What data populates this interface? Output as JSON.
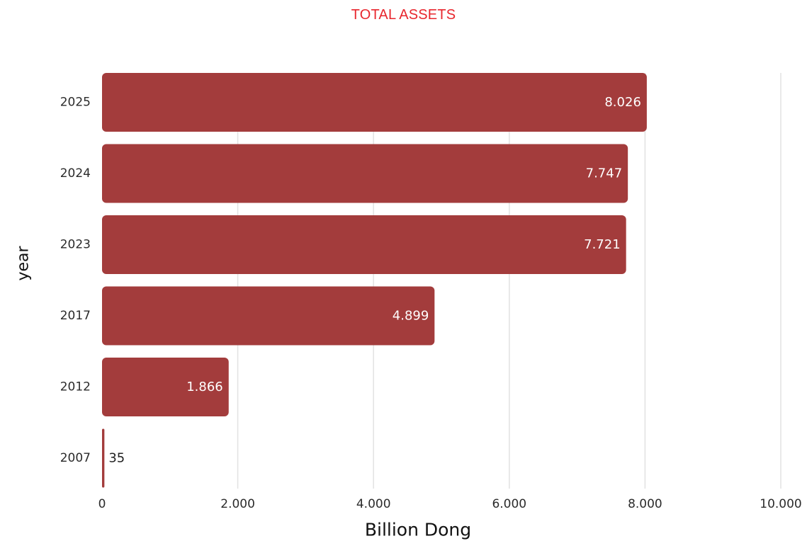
{
  "chart_data": {
    "type": "bar",
    "orientation": "horizontal",
    "title": "TOTAL ASSETS",
    "xlabel": "Billion Dong",
    "ylabel": "year",
    "categories": [
      "2025",
      "2024",
      "2023",
      "2017",
      "2012",
      "2007"
    ],
    "values": [
      8026,
      7747,
      7721,
      4899,
      1866,
      35
    ],
    "value_labels": [
      "8.026",
      "7.747",
      "7.721",
      "4.899",
      "1.866",
      "35"
    ],
    "xlim": [
      0,
      10000
    ],
    "x_ticks": [
      0,
      2000,
      4000,
      6000,
      8000,
      10000
    ],
    "x_tick_labels": [
      "0",
      "2.000",
      "4.000",
      "6.000",
      "8.000",
      "10.000"
    ],
    "grid": "vertical",
    "legend": "none"
  },
  "colors": {
    "title": "#e8262d",
    "bar": "#a33c3c",
    "grid": "#e2e2e2",
    "label_inside": "#ffffff",
    "label_outside": "#222222"
  }
}
